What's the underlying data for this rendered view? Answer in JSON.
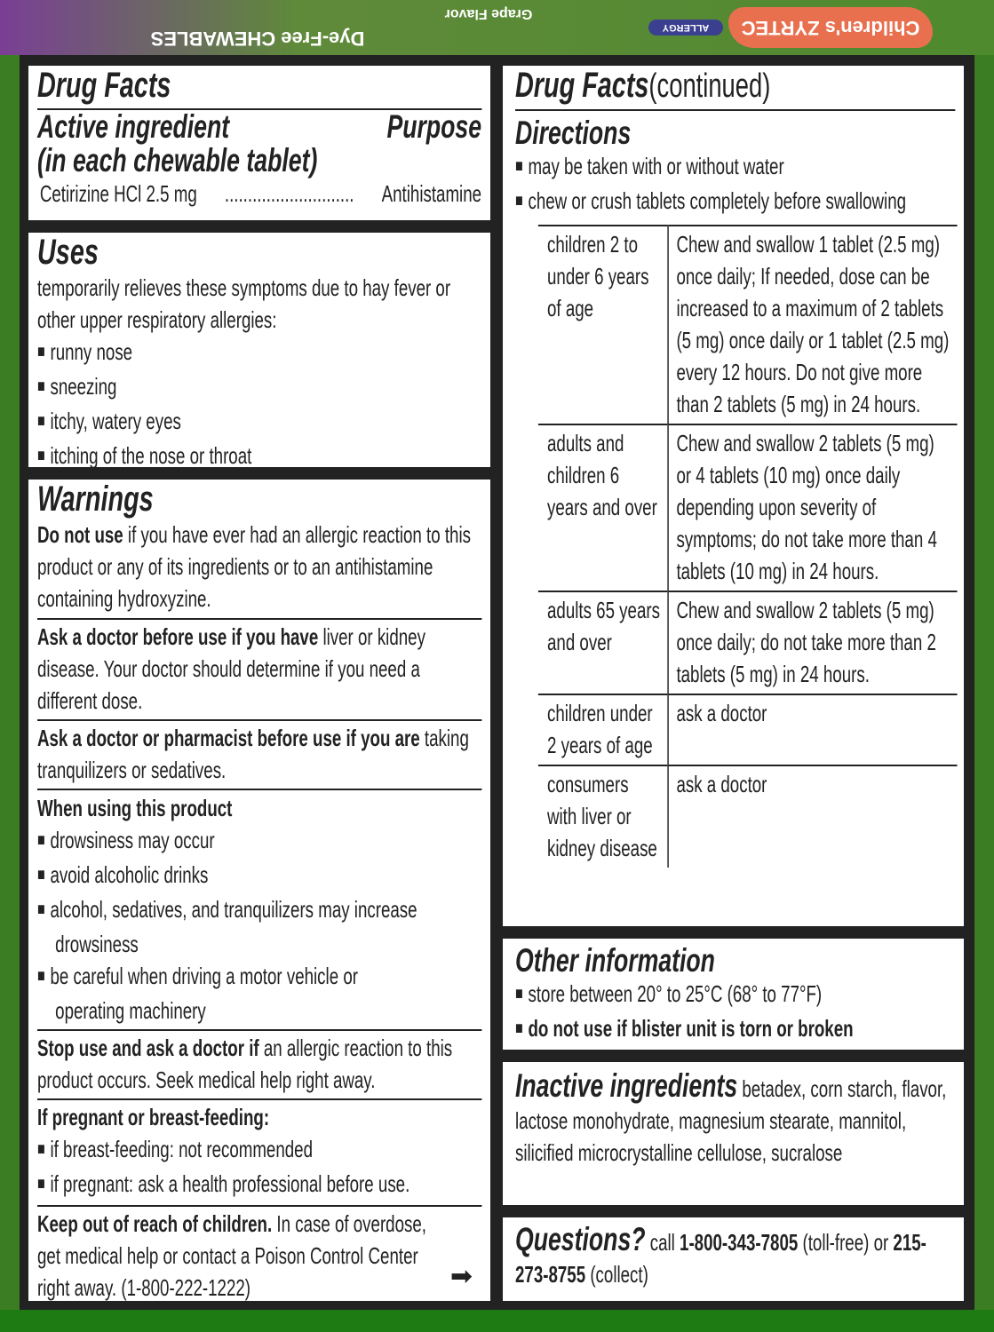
{
  "package": {
    "brand": "Children's ZYRTEC",
    "badge": "ALLERGY",
    "product": "Dye-Free CHEWABLES",
    "flavor": "Grape Flavor"
  },
  "drug_facts": {
    "title": "Drug Facts",
    "active_heading": "Active ingredient",
    "active_sub": "(in each chewable tablet)",
    "purpose_heading": "Purpose",
    "ingredient": "Cetirizine HCl 2.5 mg",
    "dots": "............................",
    "purpose": "Antihistamine"
  },
  "uses": {
    "title": "Uses",
    "intro": "temporarily relieves these symptoms due to hay fever or other upper respiratory allergies:",
    "items": [
      "runny nose",
      "sneezing",
      "itchy, watery eyes",
      "itching of the nose or throat"
    ]
  },
  "warnings": {
    "title": "Warnings",
    "do_not_use_bold": "Do not use",
    "do_not_use": " if you have ever had an allergic reaction to this product or any of its ingredients or to an antihistamine containing hydroxyzine.",
    "ask_doctor_bold": "Ask a doctor before use if you have",
    "ask_doctor": " liver or kidney disease. Your doctor should determine if you need a different dose.",
    "ask_pharm_bold": "Ask a doctor or pharmacist before use if you are",
    "ask_pharm": " taking tranquilizers or sedatives.",
    "when_using_title": "When using this product",
    "when_using": [
      "drowsiness may occur",
      "avoid alcoholic drinks",
      "alcohol, sedatives, and tranquilizers may increase drowsiness",
      "be careful when driving a motor vehicle or operating machinery"
    ],
    "stop_bold": "Stop use and ask a doctor if",
    "stop": " an allergic reaction to this product occurs. Seek medical help right away.",
    "pregnant_title": "If pregnant or breast-feeding:",
    "pregnant": [
      "if breast-feeding: not recommended",
      "if pregnant: ask a health professional before use."
    ],
    "keep_bold": "Keep out of reach of children.",
    "keep": " In case of overdose, get medical help or contact a Poison Control Center right away. (1-800-222-1222)"
  },
  "continued": {
    "title": "Drug Facts",
    "suffix": "(continued)"
  },
  "directions": {
    "title": "Directions",
    "items": [
      "may be taken with or without water",
      "chew or crush tablets completely before swallowing"
    ],
    "rows": [
      {
        "who": "children 2 to under 6 years of age",
        "dose": "Chew and swallow 1 tablet (2.5 mg) once daily; If needed, dose can be increased to a maximum of 2 tablets (5 mg) once daily or 1 tablet (2.5 mg) every 12 hours. Do not give more than 2 tablets (5 mg) in 24 hours."
      },
      {
        "who": "adults and children 6 years and over",
        "dose": "Chew and swallow 2 tablets (5 mg) or 4 tablets (10 mg) once daily depending upon severity of symptoms; do not take more than 4 tablets (10 mg) in 24 hours."
      },
      {
        "who": "adults 65 years and over",
        "dose": "Chew and swallow 2 tablets (5 mg) once daily; do not take more than 2 tablets (5 mg) in 24 hours."
      },
      {
        "who": "children under 2 years of age",
        "dose": "ask a doctor"
      },
      {
        "who": "consumers with liver or kidney disease",
        "dose": "ask a doctor"
      }
    ]
  },
  "other": {
    "title": "Other information",
    "store": "store between 20° to 25°C (68° to 77°F)",
    "blister": "do not use if blister unit is torn or broken"
  },
  "inactive": {
    "title": "Inactive ingredients",
    "text": " betadex, corn starch, flavor, lactose monohydrate, magnesium stearate, mannitol, silicified microcrystalline cellulose, sucralose"
  },
  "questions": {
    "title": "Questions?",
    "call": " call ",
    "phone1": "1-800-343-7805",
    "tollfree": " (toll-free) or ",
    "phone2": "215-273-8755",
    "collect": " (collect)"
  }
}
